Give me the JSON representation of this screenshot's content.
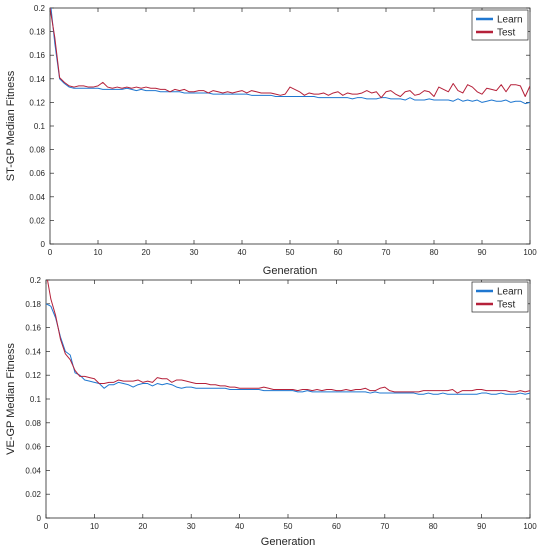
{
  "chart_data": [
    {
      "type": "line",
      "title": "",
      "xlabel": "Generation",
      "ylabel": "ST-GP Median Fitness",
      "xlim": [
        0,
        100
      ],
      "ylim": [
        0,
        0.2
      ],
      "xticks": [
        "0",
        "10",
        "20",
        "30",
        "40",
        "50",
        "60",
        "70",
        "80",
        "90",
        "100"
      ],
      "yticks": [
        "0",
        "0.02",
        "0.04",
        "0.06",
        "0.08",
        "0.1",
        "0.12",
        "0.14",
        "0.16",
        "0.18",
        "0.2"
      ],
      "grid": false,
      "legend_position": "top-right",
      "series": [
        {
          "name": "Learn",
          "color": "#1f77d0",
          "x": [
            0,
            1,
            2,
            3,
            4,
            5,
            6,
            7,
            8,
            9,
            10,
            11,
            12,
            13,
            14,
            15,
            16,
            17,
            18,
            19,
            20,
            21,
            22,
            23,
            24,
            25,
            26,
            27,
            28,
            29,
            30,
            31,
            32,
            33,
            34,
            35,
            36,
            37,
            38,
            39,
            40,
            41,
            42,
            43,
            44,
            45,
            46,
            47,
            48,
            49,
            50,
            51,
            52,
            53,
            54,
            55,
            56,
            57,
            58,
            59,
            60,
            61,
            62,
            63,
            64,
            65,
            66,
            67,
            68,
            69,
            70,
            71,
            72,
            73,
            74,
            75,
            76,
            77,
            78,
            79,
            80,
            81,
            82,
            83,
            84,
            85,
            86,
            87,
            88,
            89,
            90,
            91,
            92,
            93,
            94,
            95,
            96,
            97,
            98,
            99,
            100
          ],
          "values": [
            0.208,
            0.17,
            0.14,
            0.136,
            0.133,
            0.132,
            0.132,
            0.132,
            0.132,
            0.132,
            0.132,
            0.131,
            0.131,
            0.131,
            0.131,
            0.131,
            0.132,
            0.131,
            0.13,
            0.131,
            0.13,
            0.13,
            0.13,
            0.129,
            0.129,
            0.129,
            0.129,
            0.129,
            0.128,
            0.128,
            0.128,
            0.128,
            0.128,
            0.128,
            0.127,
            0.127,
            0.127,
            0.127,
            0.127,
            0.127,
            0.127,
            0.127,
            0.126,
            0.126,
            0.126,
            0.126,
            0.126,
            0.125,
            0.125,
            0.125,
            0.125,
            0.125,
            0.125,
            0.125,
            0.125,
            0.125,
            0.124,
            0.124,
            0.124,
            0.124,
            0.124,
            0.124,
            0.124,
            0.123,
            0.124,
            0.124,
            0.123,
            0.123,
            0.123,
            0.124,
            0.124,
            0.123,
            0.123,
            0.123,
            0.122,
            0.124,
            0.122,
            0.122,
            0.122,
            0.123,
            0.122,
            0.122,
            0.122,
            0.122,
            0.121,
            0.123,
            0.121,
            0.122,
            0.121,
            0.122,
            0.12,
            0.121,
            0.122,
            0.121,
            0.121,
            0.122,
            0.12,
            0.121,
            0.121,
            0.119,
            0.12
          ]
        },
        {
          "name": "Test",
          "color": "#b5213a",
          "x": [
            0,
            1,
            2,
            3,
            4,
            5,
            6,
            7,
            8,
            9,
            10,
            11,
            12,
            13,
            14,
            15,
            16,
            17,
            18,
            19,
            20,
            21,
            22,
            23,
            24,
            25,
            26,
            27,
            28,
            29,
            30,
            31,
            32,
            33,
            34,
            35,
            36,
            37,
            38,
            39,
            40,
            41,
            42,
            43,
            44,
            45,
            46,
            47,
            48,
            49,
            50,
            51,
            52,
            53,
            54,
            55,
            56,
            57,
            58,
            59,
            60,
            61,
            62,
            63,
            64,
            65,
            66,
            67,
            68,
            69,
            70,
            71,
            72,
            73,
            74,
            75,
            76,
            77,
            78,
            79,
            80,
            81,
            82,
            83,
            84,
            85,
            86,
            87,
            88,
            89,
            90,
            91,
            92,
            93,
            94,
            95,
            96,
            97,
            98,
            99,
            100
          ],
          "values": [
            0.2,
            0.175,
            0.141,
            0.137,
            0.134,
            0.133,
            0.134,
            0.134,
            0.133,
            0.133,
            0.134,
            0.137,
            0.133,
            0.132,
            0.133,
            0.132,
            0.133,
            0.132,
            0.133,
            0.132,
            0.133,
            0.132,
            0.132,
            0.131,
            0.131,
            0.129,
            0.131,
            0.13,
            0.131,
            0.129,
            0.129,
            0.13,
            0.13,
            0.128,
            0.13,
            0.129,
            0.128,
            0.129,
            0.128,
            0.129,
            0.13,
            0.128,
            0.13,
            0.129,
            0.128,
            0.128,
            0.128,
            0.127,
            0.126,
            0.127,
            0.133,
            0.131,
            0.129,
            0.126,
            0.128,
            0.127,
            0.127,
            0.128,
            0.126,
            0.128,
            0.129,
            0.126,
            0.128,
            0.127,
            0.127,
            0.128,
            0.13,
            0.128,
            0.129,
            0.124,
            0.129,
            0.13,
            0.127,
            0.125,
            0.129,
            0.13,
            0.126,
            0.127,
            0.13,
            0.129,
            0.125,
            0.133,
            0.131,
            0.129,
            0.136,
            0.13,
            0.128,
            0.135,
            0.133,
            0.129,
            0.127,
            0.132,
            0.131,
            0.13,
            0.135,
            0.129,
            0.135,
            0.135,
            0.134,
            0.125,
            0.134
          ]
        }
      ]
    },
    {
      "type": "line",
      "title": "",
      "xlabel": "Generation",
      "ylabel": "VE-GP Median Fitness",
      "xlim": [
        0,
        100
      ],
      "ylim": [
        0,
        0.2
      ],
      "xticks": [
        "0",
        "10",
        "20",
        "30",
        "40",
        "50",
        "60",
        "70",
        "80",
        "90",
        "100"
      ],
      "yticks": [
        "0",
        "0.02",
        "0.04",
        "0.06",
        "0.08",
        "0.1",
        "0.12",
        "0.14",
        "0.16",
        "0.18",
        "0.2"
      ],
      "grid": false,
      "legend_position": "top-right",
      "series": [
        {
          "name": "Learn",
          "color": "#1f77d0",
          "x": [
            0,
            1,
            2,
            3,
            4,
            5,
            6,
            7,
            8,
            9,
            10,
            11,
            12,
            13,
            14,
            15,
            16,
            17,
            18,
            19,
            20,
            21,
            22,
            23,
            24,
            25,
            26,
            27,
            28,
            29,
            30,
            31,
            32,
            33,
            34,
            35,
            36,
            37,
            38,
            39,
            40,
            41,
            42,
            43,
            44,
            45,
            46,
            47,
            48,
            49,
            50,
            51,
            52,
            53,
            54,
            55,
            56,
            57,
            58,
            59,
            60,
            61,
            62,
            63,
            64,
            65,
            66,
            67,
            68,
            69,
            70,
            71,
            72,
            73,
            74,
            75,
            76,
            77,
            78,
            79,
            80,
            81,
            82,
            83,
            84,
            85,
            86,
            87,
            88,
            89,
            90,
            91,
            92,
            93,
            94,
            95,
            96,
            97,
            98,
            99,
            100
          ],
          "values": [
            0.18,
            0.178,
            0.168,
            0.152,
            0.14,
            0.137,
            0.122,
            0.12,
            0.116,
            0.115,
            0.114,
            0.113,
            0.109,
            0.112,
            0.112,
            0.114,
            0.113,
            0.112,
            0.11,
            0.112,
            0.113,
            0.113,
            0.111,
            0.113,
            0.112,
            0.113,
            0.112,
            0.11,
            0.109,
            0.11,
            0.11,
            0.109,
            0.109,
            0.109,
            0.109,
            0.109,
            0.109,
            0.109,
            0.108,
            0.108,
            0.108,
            0.108,
            0.108,
            0.108,
            0.108,
            0.107,
            0.107,
            0.107,
            0.107,
            0.107,
            0.107,
            0.107,
            0.106,
            0.106,
            0.107,
            0.106,
            0.106,
            0.106,
            0.106,
            0.106,
            0.106,
            0.106,
            0.106,
            0.106,
            0.106,
            0.106,
            0.106,
            0.105,
            0.106,
            0.105,
            0.105,
            0.105,
            0.105,
            0.105,
            0.105,
            0.105,
            0.105,
            0.104,
            0.104,
            0.105,
            0.104,
            0.104,
            0.105,
            0.104,
            0.104,
            0.104,
            0.104,
            0.104,
            0.104,
            0.104,
            0.105,
            0.105,
            0.104,
            0.104,
            0.105,
            0.104,
            0.104,
            0.104,
            0.105,
            0.104,
            0.105
          ]
        },
        {
          "name": "Test",
          "color": "#b5213a",
          "x": [
            0,
            1,
            2,
            3,
            4,
            5,
            6,
            7,
            8,
            9,
            10,
            11,
            12,
            13,
            14,
            15,
            16,
            17,
            18,
            19,
            20,
            21,
            22,
            23,
            24,
            25,
            26,
            27,
            28,
            29,
            30,
            31,
            32,
            33,
            34,
            35,
            36,
            37,
            38,
            39,
            40,
            41,
            42,
            43,
            44,
            45,
            46,
            47,
            48,
            49,
            50,
            51,
            52,
            53,
            54,
            55,
            56,
            57,
            58,
            59,
            60,
            61,
            62,
            63,
            64,
            65,
            66,
            67,
            68,
            69,
            70,
            71,
            72,
            73,
            74,
            75,
            76,
            77,
            78,
            79,
            80,
            81,
            82,
            83,
            84,
            85,
            86,
            87,
            88,
            89,
            90,
            91,
            92,
            93,
            94,
            95,
            96,
            97,
            98,
            99,
            100
          ],
          "values": [
            0.207,
            0.184,
            0.17,
            0.15,
            0.138,
            0.133,
            0.124,
            0.119,
            0.119,
            0.118,
            0.117,
            0.113,
            0.113,
            0.114,
            0.114,
            0.116,
            0.115,
            0.115,
            0.115,
            0.116,
            0.114,
            0.115,
            0.114,
            0.118,
            0.117,
            0.117,
            0.114,
            0.116,
            0.116,
            0.115,
            0.114,
            0.113,
            0.113,
            0.113,
            0.112,
            0.112,
            0.111,
            0.111,
            0.11,
            0.11,
            0.109,
            0.109,
            0.109,
            0.109,
            0.109,
            0.11,
            0.109,
            0.108,
            0.108,
            0.108,
            0.108,
            0.108,
            0.107,
            0.108,
            0.108,
            0.107,
            0.108,
            0.107,
            0.108,
            0.108,
            0.107,
            0.107,
            0.108,
            0.107,
            0.108,
            0.108,
            0.109,
            0.107,
            0.107,
            0.109,
            0.11,
            0.107,
            0.106,
            0.106,
            0.106,
            0.106,
            0.106,
            0.106,
            0.107,
            0.107,
            0.107,
            0.107,
            0.107,
            0.107,
            0.108,
            0.105,
            0.107,
            0.107,
            0.107,
            0.108,
            0.108,
            0.107,
            0.107,
            0.107,
            0.107,
            0.107,
            0.106,
            0.106,
            0.107,
            0.106,
            0.107
          ]
        }
      ]
    }
  ]
}
